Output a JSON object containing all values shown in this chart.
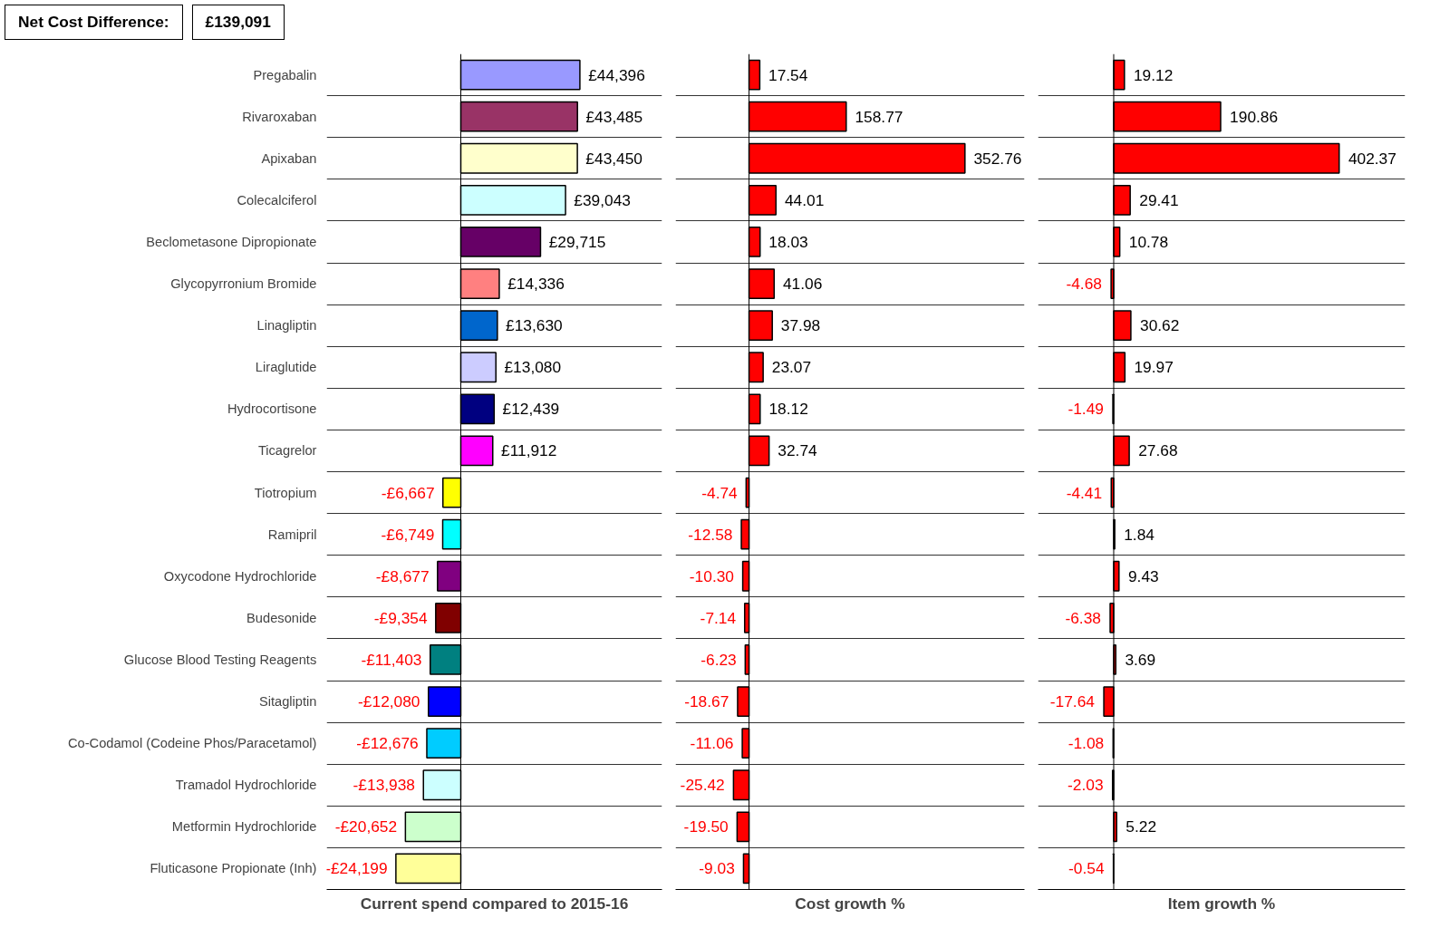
{
  "chart_data": [
    {
      "type": "bar",
      "orientation": "horizontal",
      "xlabel": "Current spend compared to 2015-16",
      "annotations": [
        "Net Cost Difference:",
        "£139,091"
      ],
      "tick_labels": "y",
      "grid": "y",
      "xlim": [
        -50000,
        75000
      ],
      "categories": [
        "Pregabalin",
        "Rivaroxaban",
        "Apixaban",
        "Colecalciferol",
        "Beclometasone Dipropionate",
        "Glycopyrronium Bromide",
        "Linagliptin",
        "Liraglutide",
        "Hydrocortisone",
        "Ticagrelor",
        "Tiotropium",
        "Ramipril",
        "Oxycodone Hydrochloride",
        "Budesonide",
        "Glucose Blood Testing Reagents",
        "Sitagliptin",
        "Co-Codamol (Codeine Phos/Paracetamol)",
        "Tramadol Hydrochloride",
        "Metformin Hydrochloride",
        "Fluticasone Propionate (Inh)"
      ],
      "values": [
        44396,
        43485,
        43450,
        39043,
        29715,
        14336,
        13630,
        13080,
        12439,
        11912,
        -6667,
        -6749,
        -8677,
        -9354,
        -11403,
        -12080,
        -12676,
        -13938,
        -20652,
        -24199
      ],
      "value_labels": [
        "£44,396",
        "£43,485",
        "£43,450",
        "£39,043",
        "£29,715",
        "£14,336",
        "£13,630",
        "£13,080",
        "£12,439",
        "£11,912",
        "-£6,667",
        "-£6,749",
        "-£8,677",
        "-£9,354",
        "-£11,403",
        "-£12,080",
        "-£12,676",
        "-£13,938",
        "-£20,652",
        "-£24,199"
      ],
      "colors": [
        "#9999ff",
        "#993366",
        "#ffffcc",
        "#ccffff",
        "#660066",
        "#ff8080",
        "#0066cc",
        "#ccccff",
        "#000080",
        "#ff00ff",
        "#ffff00",
        "#00ffff",
        "#800080",
        "#800000",
        "#008080",
        "#0000ff",
        "#00ccff",
        "#ccffff",
        "#ccffcc",
        "#ffff99"
      ]
    },
    {
      "type": "bar",
      "orientation": "horizontal",
      "xlabel": "Cost growth %",
      "tick_labels": false,
      "grid": "y",
      "xlim": [
        -120,
        450
      ],
      "color": "#ff0000",
      "categories": [
        null,
        null,
        null,
        null,
        null,
        null,
        null,
        null,
        null,
        null,
        null,
        null,
        null,
        null,
        null,
        null,
        null,
        null,
        null,
        null
      ],
      "values": [
        17.54,
        158.77,
        352.76,
        44.01,
        18.03,
        41.06,
        37.98,
        23.07,
        18.12,
        32.74,
        -4.74,
        -12.58,
        -10.3,
        -7.14,
        -6.23,
        -18.67,
        -11.06,
        -25.42,
        -19.5,
        -9.03
      ],
      "value_labels": [
        "17.54",
        "158.77",
        "352.76",
        "44.01",
        "18.03",
        "41.06",
        "37.98",
        "23.07",
        "18.12",
        "32.74",
        "-4.74",
        "-12.58",
        "-10.30",
        "-7.14",
        "-6.23",
        "-18.67",
        "-11.06",
        "-25.42",
        "-19.50",
        "-9.03"
      ]
    },
    {
      "type": "bar",
      "orientation": "horizontal",
      "xlabel": "Item growth %",
      "tick_labels": false,
      "grid": "y",
      "xlim": [
        -135,
        520
      ],
      "color": "#ff0000",
      "categories": [
        null,
        null,
        null,
        null,
        null,
        null,
        null,
        null,
        null,
        null,
        null,
        null,
        null,
        null,
        null,
        null,
        null,
        null,
        null,
        null
      ],
      "values": [
        19.12,
        190.86,
        402.37,
        29.41,
        10.78,
        -4.68,
        30.62,
        19.97,
        -1.49,
        27.68,
        -4.41,
        1.84,
        9.43,
        -6.38,
        3.69,
        -17.64,
        -1.08,
        -2.03,
        5.22,
        -0.54
      ],
      "value_labels": [
        "19.12",
        "190.86",
        "402.37",
        "29.41",
        "10.78",
        "-4.68",
        "30.62",
        "19.97",
        "-1.49",
        "27.68",
        "-4.41",
        "1.84",
        "9.43",
        "-6.38",
        "3.69",
        "-17.64",
        "-1.08",
        "-2.03",
        "5.22",
        "-0.54"
      ]
    }
  ]
}
